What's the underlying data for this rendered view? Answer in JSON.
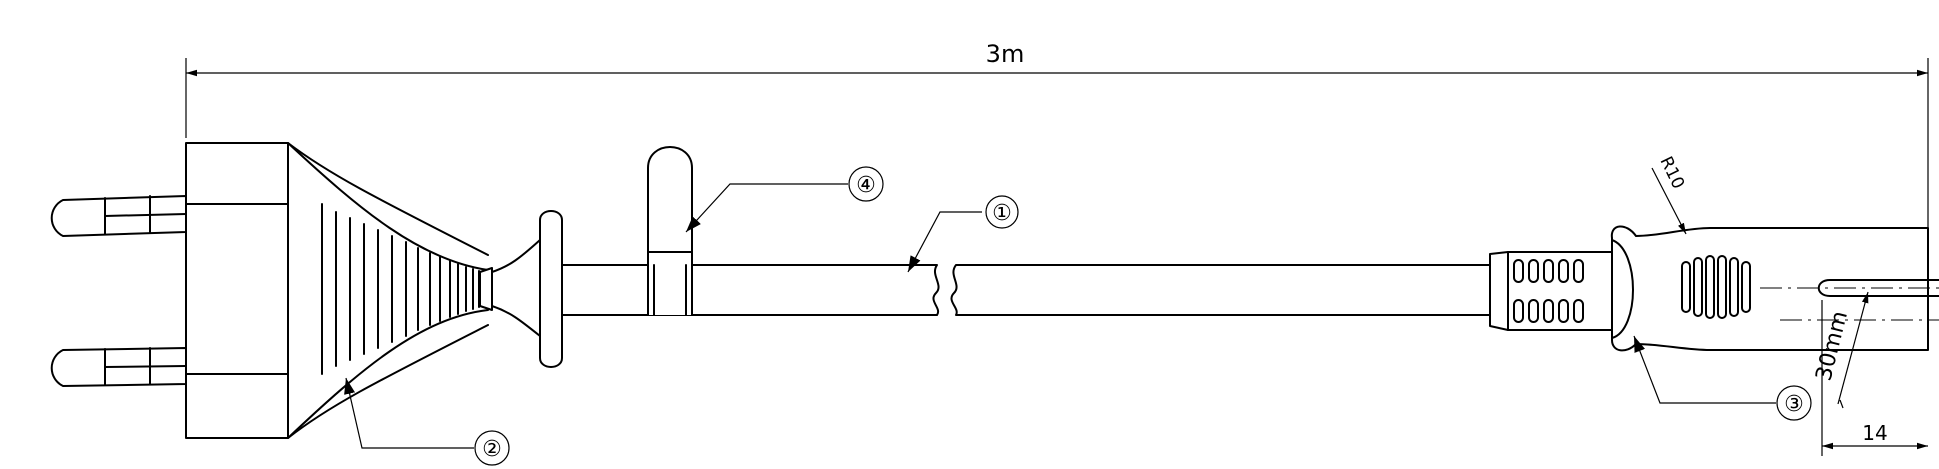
{
  "dimensions": {
    "overall_length": "3m",
    "bend_length": "30mm",
    "radius": "R10",
    "width": "14"
  },
  "callouts": [
    {
      "label": "①"
    },
    {
      "label": "②"
    },
    {
      "label": "③"
    },
    {
      "label": "④"
    }
  ],
  "colors": {
    "line": "#000000",
    "background": "#ffffff"
  }
}
